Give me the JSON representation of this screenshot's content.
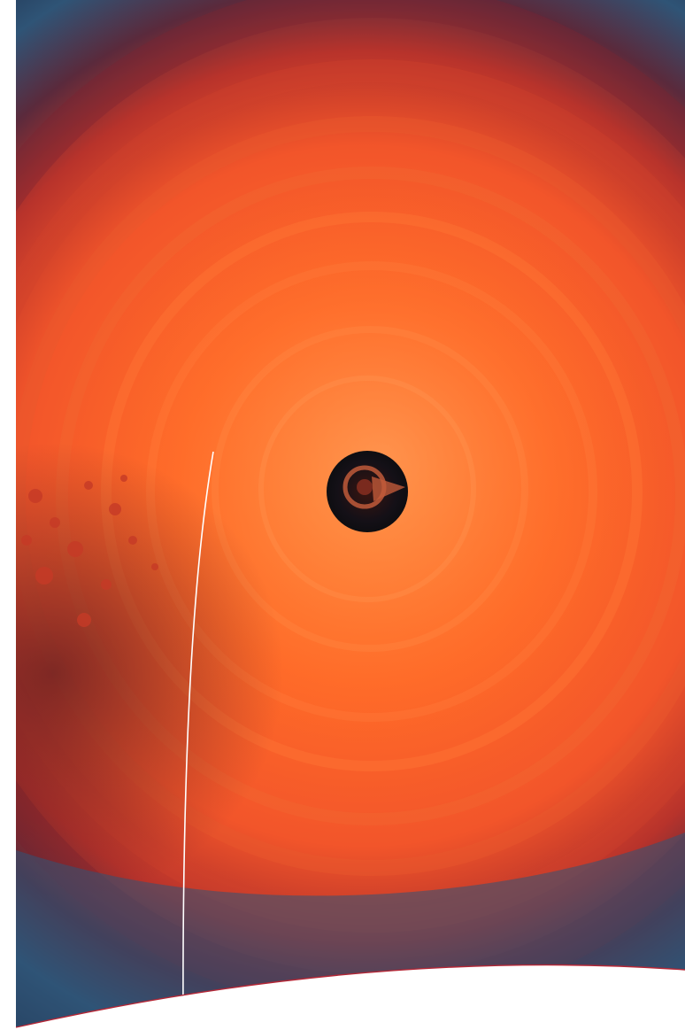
{
  "page": {
    "background": "#ffffff"
  },
  "photo": {
    "subject": "kiln-interior",
    "colors": {
      "outer_blue": "#2f5476",
      "deep_navy": "#1a2440",
      "rim_red": "#8a2a2a",
      "wall_orange": "#ff6a28",
      "hot_core": "#ff8a3a",
      "center_dark": "#0d0d10"
    }
  },
  "decorations": {
    "curve_line_color": "#ffffff",
    "swoosh_fill": "#ffffff",
    "swoosh_edge_color": "#b52736"
  }
}
